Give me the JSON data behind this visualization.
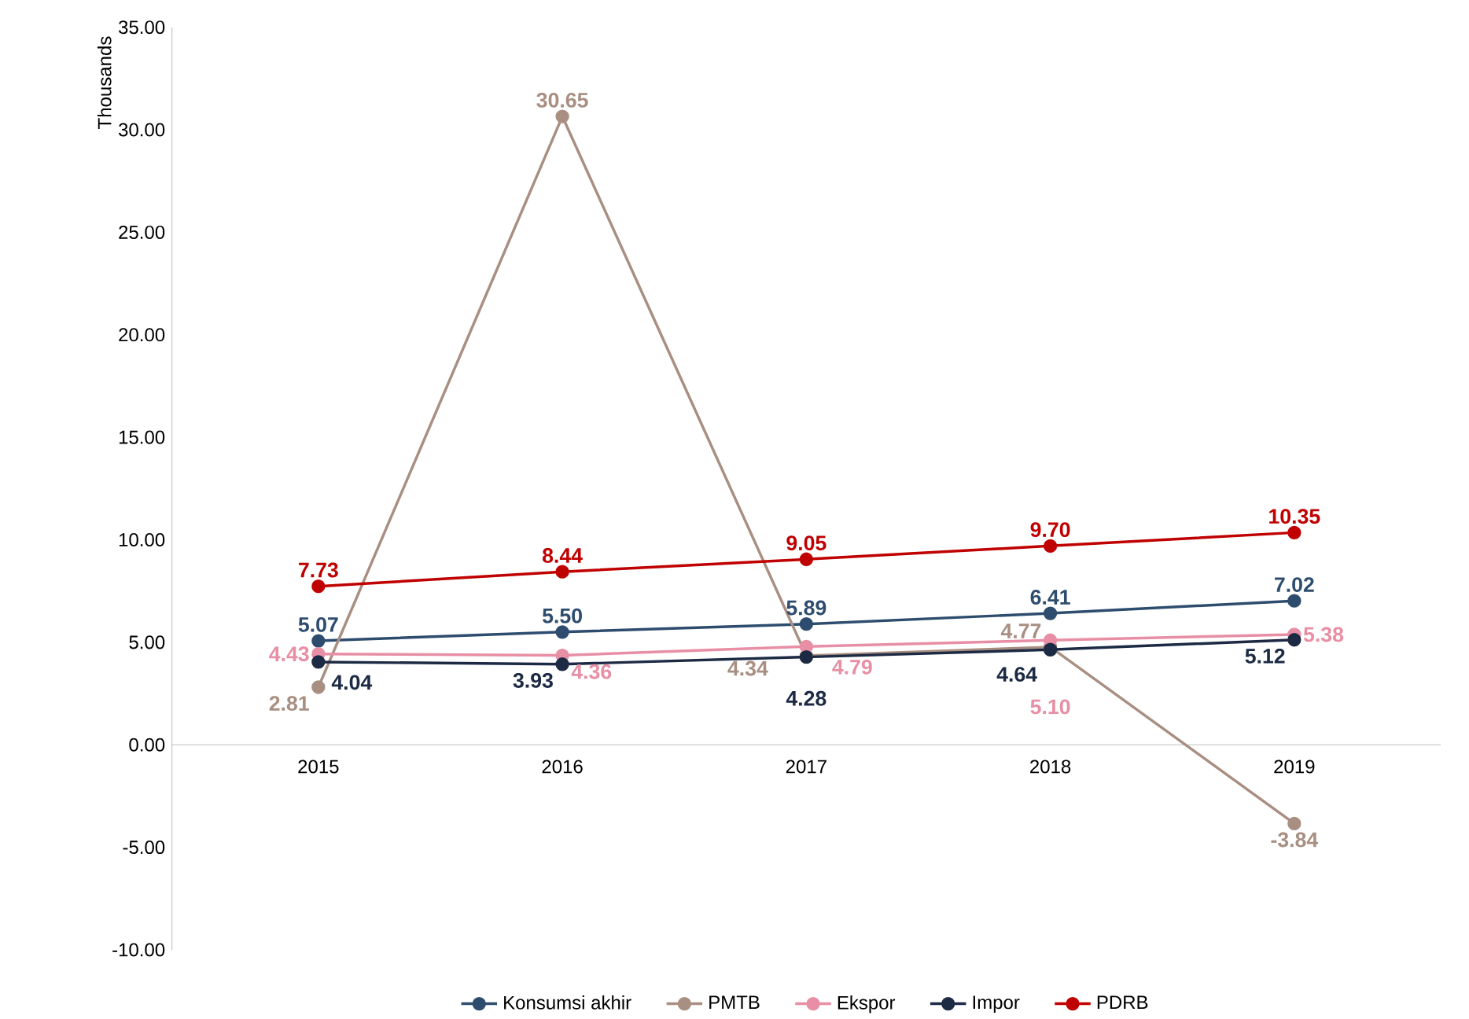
{
  "chart_data": {
    "type": "line",
    "ylabel": "Thousands",
    "categories": [
      "2015",
      "2016",
      "2017",
      "2018",
      "2019"
    ],
    "ylim": [
      -10,
      35
    ],
    "yticks": [
      {
        "value": -10,
        "label": "-10.00"
      },
      {
        "value": -5,
        "label": "-5.00"
      },
      {
        "value": 0,
        "label": "0.00"
      },
      {
        "value": 5,
        "label": "5.00"
      },
      {
        "value": 10,
        "label": "10.00"
      },
      {
        "value": 15,
        "label": "15.00"
      },
      {
        "value": 20,
        "label": "20.00"
      },
      {
        "value": 25,
        "label": "25.00"
      },
      {
        "value": 30,
        "label": "30.00"
      },
      {
        "value": 35,
        "label": "35.00"
      }
    ],
    "marker": "circle",
    "legend": "bottom",
    "series": [
      {
        "name": "Konsumsi akhir",
        "color": "#2e4d6e",
        "values": [
          5.07,
          5.5,
          5.89,
          6.41,
          7.02
        ],
        "value_labels": [
          "5.07",
          "5.50",
          "5.89",
          "6.41",
          "7.02"
        ]
      },
      {
        "name": "PMTB",
        "color": "#a88f82",
        "values": [
          2.81,
          30.65,
          4.34,
          4.77,
          -3.84
        ],
        "value_labels": [
          "2.81",
          "30.65",
          "4.34",
          "4.77",
          "-3.84"
        ]
      },
      {
        "name": "Ekspor",
        "color": "#e88ea5",
        "values": [
          4.43,
          4.36,
          4.79,
          5.1,
          5.38
        ],
        "value_labels": [
          "4.43",
          "4.36",
          "4.79",
          "5.10",
          "5.38"
        ]
      },
      {
        "name": "Impor",
        "color": "#1c2a44",
        "values": [
          4.04,
          3.93,
          4.28,
          4.64,
          5.12
        ],
        "value_labels": [
          "4.04",
          "3.93",
          "4.28",
          "4.64",
          "5.12"
        ]
      },
      {
        "name": "PDRB",
        "color": "#c00000",
        "values": [
          7.73,
          8.44,
          9.05,
          9.7,
          10.35
        ],
        "value_labels": [
          "7.73",
          "8.44",
          "9.05",
          "9.70",
          "10.35"
        ]
      }
    ]
  }
}
